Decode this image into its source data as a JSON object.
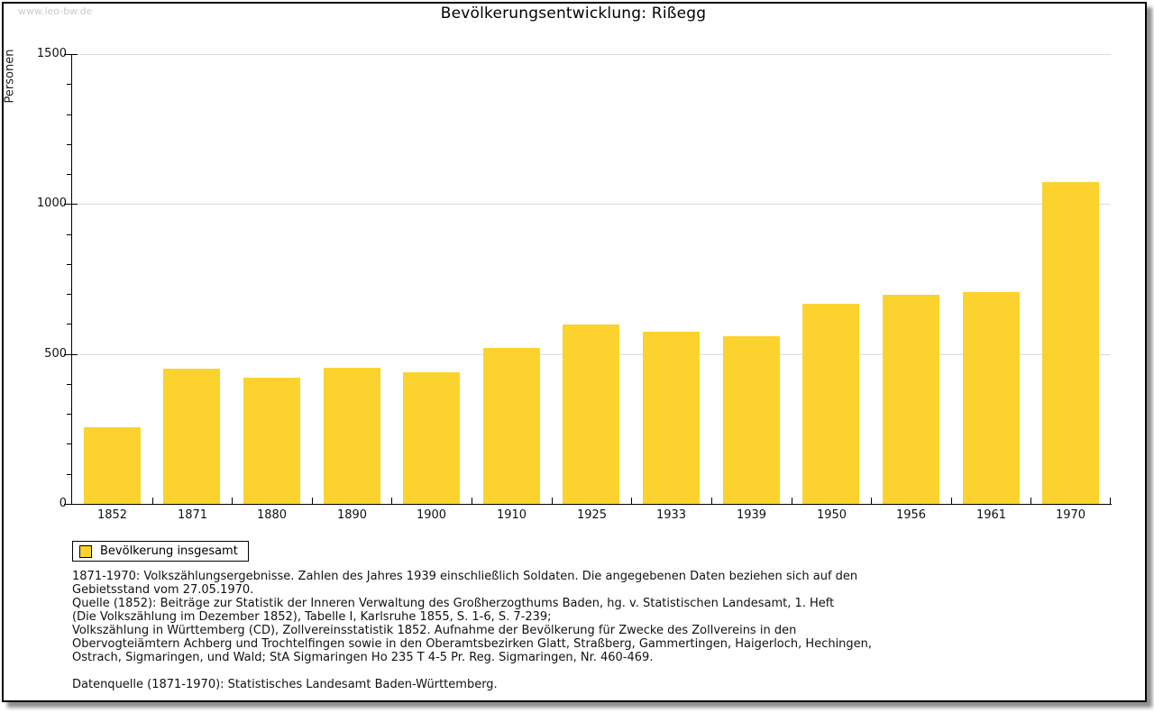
{
  "watermark": "www.leo-bw.de",
  "title": "Bevölkerungsentwicklung: Rißegg",
  "colors": {
    "bar": "#fcd32e",
    "grid": "#dbdbdb",
    "axis": "#000000",
    "watermark": "#cbcbcb"
  },
  "chart_data": {
    "type": "bar",
    "title": "Bevölkerungsentwicklung: Rißegg",
    "ylabel": "Personen",
    "xlabel": "",
    "categories": [
      "1852",
      "1871",
      "1880",
      "1890",
      "1900",
      "1910",
      "1925",
      "1933",
      "1939",
      "1950",
      "1956",
      "1961",
      "1970"
    ],
    "values": [
      255,
      452,
      421,
      455,
      440,
      520,
      597,
      573,
      558,
      666,
      696,
      706,
      1072
    ],
    "series_name": "Bevölkerung insgesamt",
    "legend": [
      "Bevölkerung insgesamt"
    ],
    "legend_position": "bottom-left",
    "ylim": [
      0,
      1500
    ],
    "yticks": [
      0,
      500,
      1000,
      1500
    ],
    "minor_tick_step": 100,
    "grid": "horizontal-major"
  },
  "footnotes": {
    "lines": [
      "1871-1970: Volkszählungsergebnisse. Zahlen des Jahres 1939 einschließlich Soldaten. Die angegebenen Daten beziehen sich auf den",
      "Gebietsstand vom 27.05.1970.",
      "Quelle (1852): Beiträge zur Statistik der Inneren Verwaltung des Großherzogthums Baden, hg. v. Statistischen Landesamt, 1. Heft",
      "(Die Volkszählung im Dezember 1852), Tabelle I, Karlsruhe 1855, S. 1-6, S. 7-239;",
      "Volkszählung in Württemberg (CD), Zollvereinsstatistik 1852. Aufnahme der Bevölkerung für Zwecke des Zollvereins in den",
      "Obervogteiämtern Achberg und Trochtelfingen sowie in den Oberamtsbezirken Glatt, Straßberg, Gammertingen, Haigerloch, Hechingen,",
      "Ostrach, Sigmaringen, und Wald; StA Sigmaringen Ho 235 T 4-5 Pr. Reg. Sigmaringen, Nr. 460-469."
    ],
    "datasource": "Datenquelle (1871-1970): Statistisches Landesamt Baden-Württemberg."
  }
}
